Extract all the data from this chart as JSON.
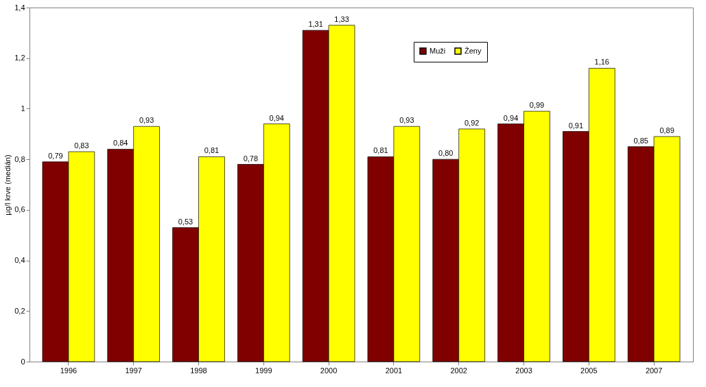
{
  "chart_data": {
    "type": "bar",
    "ylabel": "µg/l krve (medián)",
    "categories": [
      "1996",
      "1997",
      "1998",
      "1999",
      "2000",
      "2001",
      "2002",
      "2003",
      "2005",
      "2007"
    ],
    "series": [
      {
        "name": "Muži",
        "color": "#800000",
        "values": [
          0.79,
          0.84,
          0.53,
          0.78,
          1.31,
          0.81,
          0.8,
          0.94,
          0.91,
          0.85
        ],
        "value_labels": [
          "0,79",
          "0,84",
          "0,53",
          "0,78",
          "1,31",
          "0,81",
          "0,80",
          "0,94",
          "0,91",
          "0,85"
        ]
      },
      {
        "name": "Ženy",
        "color": "#ffff00",
        "values": [
          0.83,
          0.93,
          0.81,
          0.94,
          1.33,
          0.93,
          0.92,
          0.99,
          1.16,
          0.89
        ],
        "value_labels": [
          "0,83",
          "0,93",
          "0,81",
          "0,94",
          "1,33",
          "0,93",
          "0,92",
          "0,99",
          "1,16",
          "0,89"
        ]
      }
    ],
    "ylim": [
      0,
      1.4
    ],
    "yticks": [
      0,
      {
        "value": 0.2,
        "label": "0,2"
      },
      {
        "value": 0.4,
        "label": "0,4"
      },
      {
        "value": 0.6,
        "label": "0,6"
      },
      {
        "value": 0.8,
        "label": "0,8"
      },
      1,
      {
        "value": 1.2,
        "label": "1,2"
      },
      {
        "value": 1.4,
        "label": "1,4"
      }
    ],
    "grid": false,
    "legend": "top right"
  }
}
